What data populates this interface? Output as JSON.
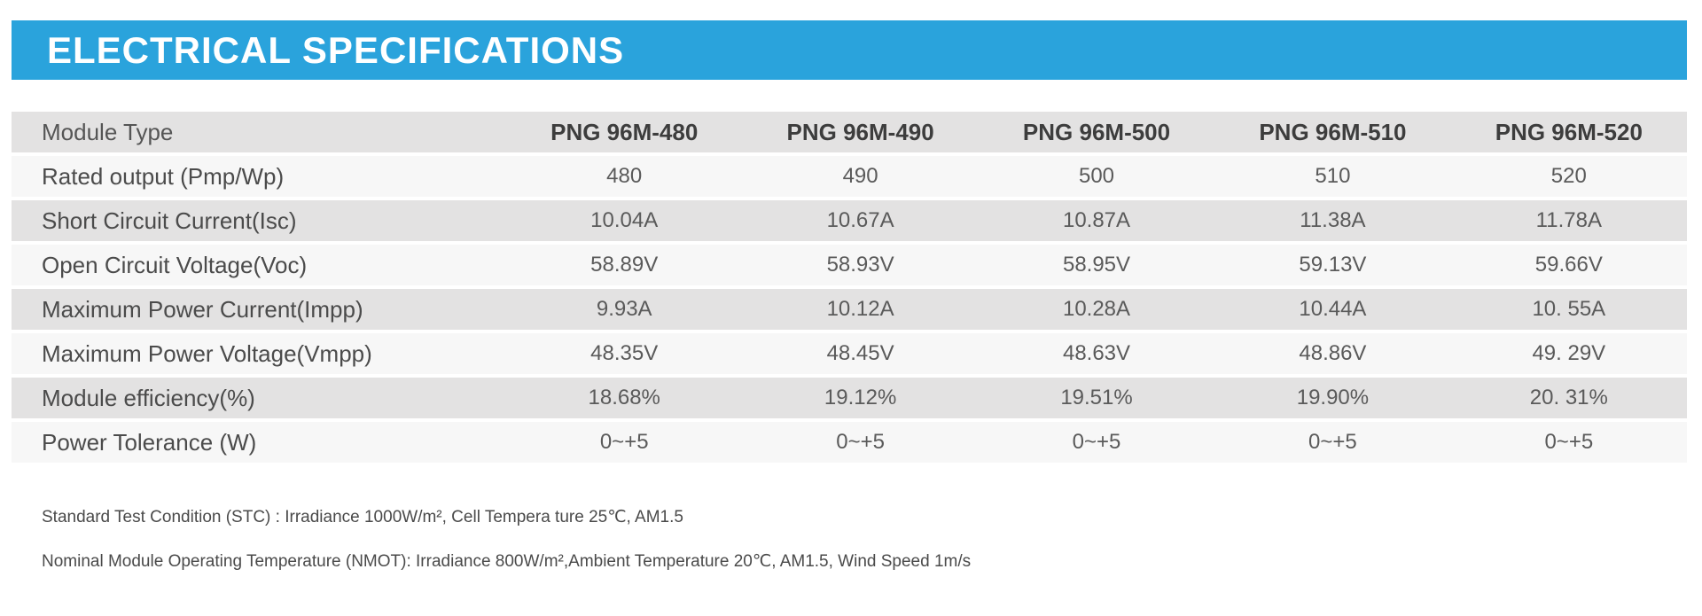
{
  "header": {
    "title": "ELECTRICAL SPECIFICATIONS",
    "bar_color": "#2aa3dc",
    "text_color": "#ffffff"
  },
  "table": {
    "corner_label": "Module Type",
    "columns": [
      "PNG 96M-480",
      "PNG 96M-490",
      "PNG 96M-500",
      "PNG 96M-510",
      "PNG 96M-520"
    ],
    "rows": [
      {
        "label": "Rated output (Pmp/Wp)",
        "values": [
          "480",
          "490",
          "500",
          "510",
          "520"
        ]
      },
      {
        "label": "Short Circuit Current(Isc)",
        "values": [
          "10.04A",
          "10.67A",
          "10.87A",
          "11.38A",
          "11.78A"
        ]
      },
      {
        "label": "Open Circuit Voltage(Voc)",
        "values": [
          "58.89V",
          "58.93V",
          "58.95V",
          "59.13V",
          "59.66V"
        ]
      },
      {
        "label": "Maximum Power Current(Impp)",
        "values": [
          "9.93A",
          "10.12A",
          "10.28A",
          "10.44A",
          "10. 55A"
        ]
      },
      {
        "label": "Maximum Power Voltage(Vmpp)",
        "values": [
          "48.35V",
          "48.45V",
          "48.63V",
          "48.86V",
          "49. 29V"
        ]
      },
      {
        "label": "Module efficiency(%)",
        "values": [
          "18.68%",
          "19.12%",
          "19.51%",
          "19.90%",
          "20. 31%"
        ]
      },
      {
        "label": "Power Tolerance (W)",
        "values": [
          "0~+5",
          "0~+5",
          "0~+5",
          "0~+5",
          "0~+5"
        ]
      }
    ],
    "stripe_color_odd": "#e3e2e2",
    "stripe_color_even": "#f7f7f7"
  },
  "footnotes": [
    "Standard Test Condition (STC) : Irradiance 1000W/m², Cell Tempera ture 25℃, AM1.5",
    "Nominal Module Operating Temperature (NMOT): Irradiance 800W/m²,Ambient Temperature 20℃, AM1.5, Wind Speed 1m/s"
  ]
}
